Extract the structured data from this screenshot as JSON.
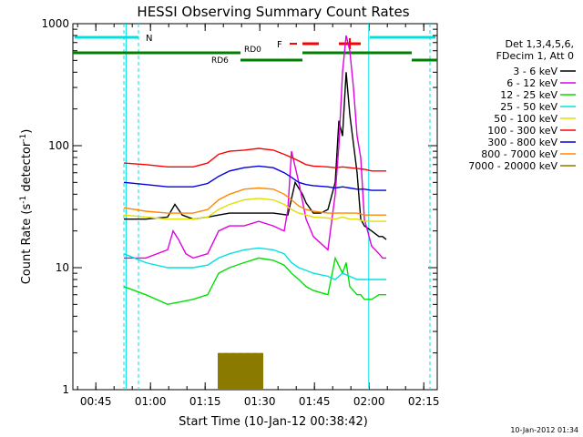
{
  "chart_data": {
    "type": "line",
    "title": "HESSI Observing Summary Count Rates",
    "xlabel": "Start Time (10-Jan-12 00:38:42)",
    "ylabel_main": "Count Rate (s",
    "ylabel_sup": "-1",
    "ylabel_tail": " detector",
    "ylabel_close": ")",
    "y_scale": "log",
    "ylim": [
      1,
      1000
    ],
    "xlim_minutes": [
      0,
      100
    ],
    "x_ticks": [
      {
        "m": 6.3,
        "label": "00:45"
      },
      {
        "m": 21.3,
        "label": "01:00"
      },
      {
        "m": 36.3,
        "label": "01:15"
      },
      {
        "m": 51.3,
        "label": "01:30"
      },
      {
        "m": 66.3,
        "label": "01:45"
      },
      {
        "m": 81.3,
        "label": "02:00"
      },
      {
        "m": 96.3,
        "label": "02:15"
      }
    ],
    "y_ticks": [
      {
        "v": 1,
        "label": "1"
      },
      {
        "v": 10,
        "label": "10"
      },
      {
        "v": 100,
        "label": "100"
      },
      {
        "v": 1000,
        "label": "1000"
      }
    ],
    "legend_header": [
      "Det 1,3,4,5,6,",
      "FDecim 1, Att 0"
    ],
    "legend_placement": "right",
    "series": [
      {
        "name": "3 - 6 keV",
        "color": "#000000",
        "x": [
          14,
          20,
          26,
          28,
          30,
          33,
          37,
          40,
          43,
          47,
          51,
          55,
          59,
          61,
          63,
          64,
          66,
          68,
          70,
          72,
          73,
          74,
          75,
          76,
          78,
          79,
          80,
          82,
          84,
          85,
          86
        ],
        "y": [
          25,
          25,
          26,
          33,
          27,
          25,
          26,
          27,
          28,
          28,
          28,
          28,
          27,
          50,
          40,
          34,
          28,
          28,
          30,
          50,
          160,
          120,
          400,
          180,
          60,
          25,
          22,
          20,
          18,
          18,
          17
        ]
      },
      {
        "name": "6 - 12 keV",
        "color": "#e000e0",
        "x": [
          14,
          20,
          26,
          27.5,
          29,
          31,
          33,
          37,
          40,
          43,
          47,
          51,
          55,
          58,
          59,
          60,
          62,
          64,
          66,
          70,
          72,
          73,
          74,
          75,
          76,
          77,
          78,
          79,
          80,
          82,
          84,
          85,
          86
        ],
        "y": [
          12,
          12,
          14,
          20,
          17,
          13,
          12,
          13,
          20,
          22,
          22,
          24,
          22,
          20,
          30,
          90,
          50,
          25,
          18,
          14,
          40,
          100,
          400,
          800,
          600,
          300,
          120,
          80,
          25,
          15,
          13,
          12,
          12
        ]
      },
      {
        "name": "12 - 25 keV",
        "color": "#00e000",
        "x": [
          14,
          20,
          26,
          33,
          37,
          40,
          43,
          47,
          51,
          55,
          58,
          60,
          62,
          64,
          66,
          70,
          72,
          74,
          75,
          76,
          78,
          79,
          80,
          82,
          84,
          85,
          86
        ],
        "y": [
          7,
          6,
          5,
          5.5,
          6,
          9,
          10,
          11,
          12,
          11.5,
          10.5,
          9,
          8,
          7,
          6.5,
          6,
          12,
          9,
          11,
          7,
          6,
          6,
          5.5,
          5.5,
          6,
          6,
          6
        ]
      },
      {
        "name": "25 - 50 keV",
        "color": "#00e0e0",
        "x": [
          14,
          20,
          26,
          33,
          37,
          40,
          43,
          47,
          51,
          55,
          58,
          60,
          62,
          64,
          66,
          70,
          72,
          74,
          76,
          78,
          80,
          82,
          84,
          85,
          86
        ],
        "y": [
          13,
          11,
          10,
          10,
          10.5,
          12,
          13,
          14,
          14.5,
          14,
          13,
          11,
          10,
          9.5,
          9,
          8.5,
          8,
          9,
          8.5,
          8,
          8,
          8,
          8,
          8,
          8
        ]
      },
      {
        "name": "50 - 100 keV",
        "color": "#e0e000",
        "x": [
          14,
          20,
          26,
          33,
          37,
          40,
          43,
          47,
          51,
          55,
          58,
          60,
          62,
          64,
          66,
          70,
          72,
          74,
          76,
          78,
          80,
          82,
          84,
          85,
          86
        ],
        "y": [
          27,
          26,
          25,
          25,
          26,
          30,
          33,
          36,
          37,
          36,
          33,
          30,
          28,
          27,
          26,
          25.5,
          25,
          26,
          25,
          25,
          24,
          24,
          24,
          24,
          24
        ]
      },
      {
        "name": "100 - 300 keV",
        "color": "#ff0000",
        "x": [
          14,
          20,
          26,
          33,
          37,
          40,
          43,
          47,
          51,
          55,
          58,
          60,
          62,
          64,
          66,
          70,
          72,
          74,
          76,
          78,
          80,
          82,
          84,
          85,
          86
        ],
        "y": [
          72,
          70,
          67,
          67,
          72,
          85,
          90,
          92,
          95,
          92,
          85,
          80,
          75,
          70,
          68,
          67,
          66,
          67,
          66,
          65,
          64,
          62,
          62,
          62,
          62
        ]
      },
      {
        "name": "300 - 800 keV",
        "color": "#0000e0",
        "x": [
          14,
          20,
          26,
          33,
          37,
          40,
          43,
          47,
          51,
          55,
          58,
          60,
          62,
          64,
          66,
          70,
          72,
          74,
          76,
          78,
          80,
          82,
          84,
          85,
          86
        ],
        "y": [
          50,
          48,
          46,
          46,
          49,
          56,
          62,
          66,
          68,
          66,
          60,
          55,
          50,
          48,
          47,
          46,
          45,
          46,
          45,
          44,
          44,
          43,
          43,
          43,
          43
        ]
      },
      {
        "name": "800 - 7000 keV",
        "color": "#ff8800",
        "x": [
          14,
          20,
          26,
          33,
          37,
          40,
          43,
          47,
          51,
          55,
          58,
          60,
          62,
          64,
          66,
          70,
          72,
          74,
          76,
          78,
          80,
          82,
          84,
          85,
          86
        ],
        "y": [
          31,
          29,
          28,
          28,
          30,
          36,
          40,
          44,
          45,
          44,
          40,
          36,
          32,
          30,
          29,
          28,
          28,
          28,
          28,
          28,
          27,
          27,
          27,
          27,
          27
        ]
      },
      {
        "name": "7000 - 20000 keV",
        "color": "#8a7a00",
        "x": [
          40,
          42,
          44,
          46,
          48,
          50,
          52
        ],
        "y": [
          2,
          2,
          2,
          2,
          2,
          2,
          2
        ]
      }
    ],
    "annotations": {
      "night_label": "N",
      "flare_label": "F",
      "rd0_label": "RD0",
      "rd6_label": "RD6",
      "date_stamp": "10-Jan-2012 01:34"
    },
    "colors": {
      "night": "#00e0e0",
      "flare": "#ff0000",
      "rd": "#008000",
      "axis": "#000000"
    }
  }
}
